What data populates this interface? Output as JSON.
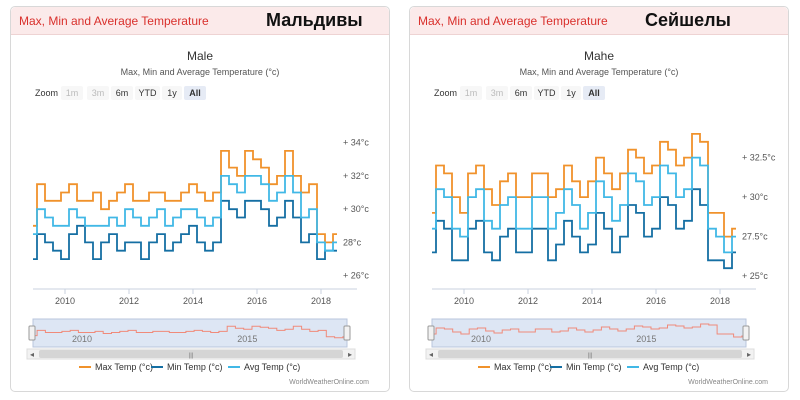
{
  "colors": {
    "max": "#f0922b",
    "min": "#156fa3",
    "avg": "#41b8e6",
    "nav_line": "#f08a7a",
    "header_title": "#d9302c"
  },
  "panels": [
    {
      "header_title": "Max, Min and Average Temperature",
      "overlay_label": "Мальдивы",
      "zoom_label": "Zoom",
      "zoom_buttons": [
        "1m",
        "3m",
        "6m",
        "YTD",
        "1y",
        "All"
      ],
      "zoom_selected": "All",
      "legend": [
        "Max Temp (°c)",
        "Min Temp (°c)",
        "Avg Temp (°c)"
      ],
      "credit": "WorldWeatherOnline.com",
      "navigator_labels": [
        "2010",
        "2015"
      ],
      "chart_data": {
        "type": "line",
        "title": "Male",
        "subtitle": "Max, Min and Average Temperature (°c)",
        "x_ticks": [
          "2010",
          "2012",
          "2014",
          "2016",
          "2018"
        ],
        "y_ticks": [
          "+ 26°c",
          "28°c",
          "+ 30°c",
          "+ 32°c",
          "+ 34°c"
        ],
        "y_tick_values": [
          26,
          28,
          30,
          32,
          34
        ],
        "xlim": [
          2009,
          2018.5
        ],
        "ylim": [
          25.5,
          35
        ],
        "grid": false,
        "legend_position": "bottom",
        "x": [
          2009,
          2009.25,
          2009.5,
          2009.75,
          2010,
          2010.25,
          2010.5,
          2010.75,
          2011,
          2011.25,
          2011.5,
          2011.75,
          2012,
          2012.25,
          2012.5,
          2012.75,
          2013,
          2013.25,
          2013.5,
          2013.75,
          2014,
          2014.25,
          2014.5,
          2014.75,
          2015,
          2015.25,
          2015.5,
          2015.75,
          2016,
          2016.25,
          2016.5,
          2016.75,
          2017,
          2017.25,
          2017.5,
          2017.75,
          2018,
          2018.25,
          2018.5
        ],
        "series": [
          {
            "name": "Max Temp (°c)",
            "values": [
              29,
              31.5,
              30.5,
              30.5,
              31,
              31.5,
              30.5,
              30.5,
              31,
              30,
              30.5,
              31,
              31.5,
              30.5,
              30.5,
              31,
              31,
              30.5,
              30.5,
              31,
              31.5,
              31,
              30.5,
              31,
              33.5,
              32.5,
              32,
              33.5,
              33,
              32.5,
              31.5,
              32,
              33.5,
              32,
              31,
              31.5,
              28.5,
              28,
              28.5
            ]
          },
          {
            "name": "Min Temp (°c)",
            "values": [
              27,
              28.5,
              28,
              27.5,
              27,
              28.5,
              29,
              28,
              27,
              28,
              28.5,
              27.5,
              28,
              28,
              27,
              28,
              28.5,
              27.5,
              28,
              28.5,
              29,
              28,
              27.5,
              28,
              30.5,
              30,
              29.5,
              30.5,
              30.5,
              30,
              29,
              29.5,
              30.5,
              29.5,
              28,
              28.5,
              27,
              27.5,
              27.5
            ]
          },
          {
            "name": "Avg Temp (°c)",
            "values": [
              28.5,
              30,
              29.5,
              29,
              29,
              30,
              29.5,
              29,
              29,
              29,
              29.5,
              29,
              30,
              29.5,
              29,
              29.5,
              30,
              29,
              29.5,
              30,
              30,
              29.5,
              29,
              29.5,
              32,
              31.5,
              31,
              32,
              32,
              31.5,
              30.5,
              31,
              32,
              31,
              29.5,
              30,
              28,
              27.5,
              28
            ]
          }
        ]
      }
    },
    {
      "header_title": "Max, Min and Average Temperature",
      "overlay_label": "Сейшелы",
      "zoom_label": "Zoom",
      "zoom_buttons": [
        "1m",
        "3m",
        "6m",
        "YTD",
        "1y",
        "All"
      ],
      "zoom_selected": "All",
      "legend": [
        "Max Temp (°c)",
        "Min Temp (°c)",
        "Avg Temp (°c)"
      ],
      "credit": "WorldWeatherOnline.com",
      "navigator_labels": [
        "2010",
        "2015"
      ],
      "chart_data": {
        "type": "line",
        "title": "Mahe",
        "subtitle": "Max, Min and Average Temperature (°c)",
        "x_ticks": [
          "2010",
          "2012",
          "2014",
          "2016",
          "2018"
        ],
        "y_ticks": [
          "+ 25°c",
          "27.5°c",
          "+ 30°c",
          "+ 32.5°c"
        ],
        "y_tick_values": [
          25,
          27.5,
          30,
          32.5
        ],
        "xlim": [
          2009,
          2018.5
        ],
        "ylim": [
          24.5,
          34.5
        ],
        "grid": false,
        "legend_position": "bottom",
        "x": [
          2009,
          2009.25,
          2009.5,
          2009.75,
          2010,
          2010.25,
          2010.5,
          2010.75,
          2011,
          2011.25,
          2011.5,
          2011.75,
          2012,
          2012.25,
          2012.5,
          2012.75,
          2013,
          2013.25,
          2013.5,
          2013.75,
          2014,
          2014.25,
          2014.5,
          2014.75,
          2015,
          2015.25,
          2015.5,
          2015.75,
          2016,
          2016.25,
          2016.5,
          2016.75,
          2017,
          2017.25,
          2017.5,
          2017.75,
          2018,
          2018.25,
          2018.5
        ],
        "series": [
          {
            "name": "Max Temp (°c)",
            "values": [
              29,
              32,
              31.5,
              30,
              29,
              31.5,
              32,
              30.5,
              29.5,
              31,
              31.5,
              30,
              30,
              31.5,
              31.5,
              30,
              30.5,
              32,
              31,
              30,
              31,
              32.5,
              31.5,
              30.5,
              31.5,
              33,
              32.5,
              31.5,
              32,
              33.5,
              33,
              32,
              32.5,
              34,
              33.5,
              29,
              29,
              27.5,
              28
            ]
          },
          {
            "name": "Min Temp (°c)",
            "values": [
              26.5,
              28.5,
              28,
              26,
              26,
              28,
              28.5,
              26.5,
              26,
              27.5,
              28,
              26.5,
              26.5,
              28,
              28,
              26,
              27,
              28.5,
              27.5,
              26.5,
              27,
              29,
              28,
              26.5,
              27.5,
              29.5,
              29,
              27.5,
              28,
              30,
              29.5,
              28,
              28.5,
              30.5,
              29.5,
              26,
              26,
              25.5,
              26.5
            ]
          },
          {
            "name": "Avg Temp (°c)",
            "values": [
              28,
              30.5,
              30,
              28,
              27.5,
              30,
              30.5,
              28.5,
              28,
              29.5,
              30,
              28,
              28,
              30,
              30,
              28,
              29,
              30.5,
              29.5,
              28,
              29,
              31,
              30,
              28.5,
              29.5,
              31.5,
              31,
              29.5,
              30,
              32,
              31.5,
              30,
              30.5,
              32.5,
              32,
              28,
              27.5,
              26.5,
              27.5
            ]
          }
        ]
      }
    }
  ]
}
